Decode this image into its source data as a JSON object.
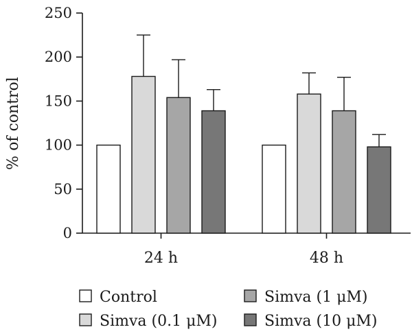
{
  "chart_data": {
    "type": "bar",
    "title": "",
    "xlabel": "",
    "ylabel": "% of control",
    "ylim": [
      0,
      250
    ],
    "yticks": [
      0,
      50,
      100,
      150,
      200,
      250
    ],
    "categories": [
      "24 h",
      "48 h"
    ],
    "series": [
      {
        "name": "Control",
        "color": "#ffffff",
        "values": [
          100,
          100
        ],
        "errors": [
          0,
          0
        ]
      },
      {
        "name": "Simva (0.1 μM)",
        "color": "#d9d9d9",
        "values": [
          178,
          158
        ],
        "errors": [
          47,
          24
        ]
      },
      {
        "name": "Simva (1 μM)",
        "color": "#a6a6a6",
        "values": [
          154,
          139
        ],
        "errors": [
          43,
          38
        ]
      },
      {
        "name": "Simva (10 μM)",
        "color": "#777777",
        "values": [
          139,
          98
        ],
        "errors": [
          24,
          14
        ]
      }
    ],
    "legend": {
      "placement": "bottom",
      "order": [
        0,
        2,
        1,
        3
      ]
    },
    "grid": false
  }
}
